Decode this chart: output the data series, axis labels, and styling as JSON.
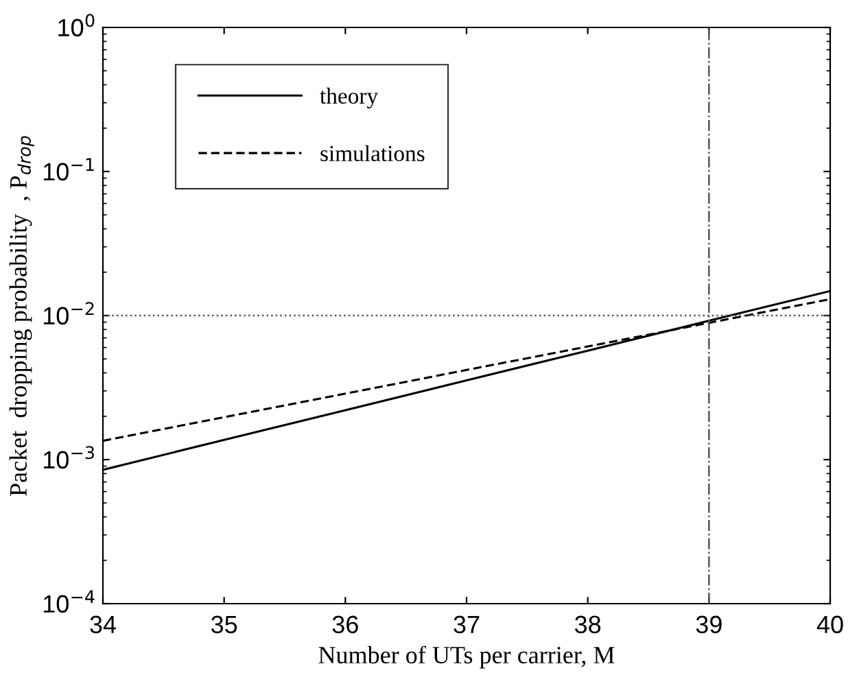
{
  "chart_data": {
    "type": "line",
    "xlabel": "Number of UTs per carrier, M",
    "ylabel": "Packet  dropping probability  , P$_{drop}$",
    "x": [
      34,
      35,
      36,
      37,
      38,
      39,
      40
    ],
    "series": [
      {
        "name": "theory",
        "color": "#000000",
        "line_style": "solid",
        "values": [
          0.00085,
          0.00137,
          0.0022,
          0.00355,
          0.0057,
          0.0092,
          0.0148
        ]
      },
      {
        "name": "simulations",
        "color": "#000000",
        "line_style": "dashed",
        "values": [
          0.00135,
          0.00197,
          0.00287,
          0.00419,
          0.0061,
          0.0089,
          0.013
        ]
      }
    ],
    "log": "y",
    "xlim": [
      34,
      40
    ],
    "xticks": [
      34,
      35,
      36,
      37,
      38,
      39,
      40
    ],
    "ylim": [
      0.0001,
      1
    ],
    "yticks": [
      {
        "value": 0.0001,
        "label": "10$^{−4}$"
      },
      {
        "value": 0.001,
        "label": "10$^{−3}$"
      },
      {
        "value": 0.01,
        "label": "10$^{−2}$"
      },
      {
        "value": 0.1,
        "label": "10$^{−1}$"
      },
      {
        "value": 1,
        "label": "10$^{0}$"
      }
    ],
    "ref_lines": [
      {
        "axis": "y",
        "value": 0.01,
        "line_style": "dotted",
        "color": "#555555"
      },
      {
        "axis": "x",
        "value": 39,
        "line_style": "dashdot",
        "color": "#555555"
      }
    ],
    "grid": false,
    "legend": "top left",
    "marker": "none"
  }
}
